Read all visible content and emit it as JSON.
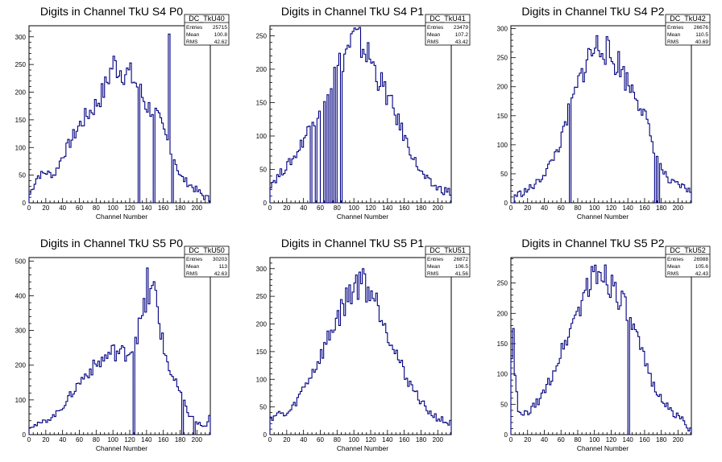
{
  "chart_data": [
    {
      "type": "histogram",
      "title": "Digits in Channel TkU S4 P0",
      "xlabel": "Channel Number",
      "xlim": [
        0,
        216
      ],
      "ylim": [
        0,
        320
      ],
      "xticks": [
        0,
        20,
        40,
        60,
        80,
        100,
        120,
        140,
        160,
        180,
        200
      ],
      "yticks": [
        0,
        50,
        100,
        150,
        200,
        250,
        300
      ],
      "stats": {
        "name": "DC_TkU40",
        "entries": "25715",
        "mean": "100.8",
        "rms": "42.62"
      },
      "series_color": "#000080",
      "x": [
        0,
        10,
        20,
        30,
        40,
        50,
        60,
        70,
        80,
        90,
        100,
        110,
        120,
        130,
        140,
        150,
        160,
        170,
        180,
        190,
        200,
        210,
        216
      ],
      "values": [
        12,
        48,
        55,
        50,
        85,
        112,
        140,
        160,
        178,
        205,
        252,
        240,
        232,
        210,
        175,
        165,
        130,
        95,
        48,
        35,
        22,
        10,
        5
      ],
      "spikes": [
        [
          130,
          0
        ],
        [
          148,
          0
        ],
        [
          166,
          305
        ],
        [
          170,
          0
        ]
      ]
    },
    {
      "type": "histogram",
      "title": "Digits in Channel TkU S4 P1",
      "xlabel": "Channel Number",
      "xlim": [
        0,
        216
      ],
      "ylim": [
        0,
        265
      ],
      "xticks": [
        0,
        20,
        40,
        60,
        80,
        100,
        120,
        140,
        160,
        180,
        200
      ],
      "yticks": [
        0,
        50,
        100,
        150,
        200,
        250
      ],
      "stats": {
        "name": "DC_TkU41",
        "entries": "23479",
        "mean": "107.2",
        "rms": "43.42"
      },
      "series_color": "#000080",
      "x": [
        0,
        10,
        20,
        30,
        40,
        50,
        60,
        70,
        80,
        90,
        100,
        110,
        120,
        130,
        140,
        150,
        160,
        170,
        180,
        190,
        200,
        210,
        216
      ],
      "values": [
        28,
        40,
        55,
        70,
        95,
        120,
        150,
        175,
        200,
        225,
        248,
        235,
        215,
        185,
        160,
        130,
        100,
        70,
        45,
        30,
        22,
        18,
        15
      ],
      "spikes": [
        [
          48,
          0
        ],
        [
          54,
          0
        ],
        [
          60,
          0
        ],
        [
          62,
          0
        ],
        [
          66,
          0
        ],
        [
          70,
          0
        ],
        [
          74,
          0
        ],
        [
          78,
          0
        ],
        [
          84,
          0
        ]
      ]
    },
    {
      "type": "histogram",
      "title": "Digits in Channel TkU S4 P2",
      "xlabel": "Channel Number",
      "xlim": [
        0,
        216
      ],
      "ylim": [
        0,
        305
      ],
      "xticks": [
        0,
        20,
        40,
        60,
        80,
        100,
        120,
        140,
        160,
        180,
        200
      ],
      "yticks": [
        0,
        50,
        100,
        150,
        200,
        250,
        300
      ],
      "stats": {
        "name": "DC_TkU42",
        "entries": "26676",
        "mean": "110.5",
        "rms": "40.69"
      },
      "series_color": "#000080",
      "x": [
        0,
        10,
        20,
        30,
        40,
        50,
        60,
        70,
        80,
        90,
        100,
        110,
        120,
        130,
        140,
        150,
        160,
        170,
        180,
        190,
        200,
        210,
        216
      ],
      "values": [
        12,
        15,
        22,
        32,
        50,
        75,
        105,
        160,
        200,
        245,
        265,
        275,
        245,
        240,
        205,
        190,
        150,
        100,
        60,
        35,
        30,
        25,
        15
      ],
      "spikes": [
        [
          0,
          0
        ],
        [
          2,
          0
        ],
        [
          70,
          0
        ],
        [
          172,
          0
        ],
        [
          176,
          0
        ]
      ]
    },
    {
      "type": "histogram",
      "title": "Digits in Channel TkU S5 P0",
      "xlabel": "Channel Number",
      "xlim": [
        0,
        216
      ],
      "ylim": [
        0,
        510
      ],
      "xticks": [
        0,
        20,
        40,
        60,
        80,
        100,
        120,
        140,
        160,
        180,
        200
      ],
      "yticks": [
        0,
        100,
        200,
        300,
        400,
        500
      ],
      "stats": {
        "name": "DC_TkU50",
        "entries": "30203",
        "mean": "113",
        "rms": "42.63"
      },
      "series_color": "#000080",
      "x": [
        0,
        10,
        20,
        30,
        40,
        50,
        60,
        70,
        80,
        90,
        100,
        110,
        120,
        130,
        140,
        150,
        160,
        170,
        180,
        190,
        200,
        210,
        216
      ],
      "values": [
        25,
        28,
        40,
        55,
        80,
        115,
        150,
        180,
        200,
        220,
        240,
        235,
        240,
        300,
        380,
        420,
        250,
        170,
        120,
        60,
        35,
        20,
        55
      ],
      "spikes": [
        [
          124,
          0
        ],
        [
          140,
          480
        ],
        [
          182,
          0
        ],
        [
          196,
          0
        ]
      ]
    },
    {
      "type": "histogram",
      "title": "Digits in Channel TkU S5 P1",
      "xlabel": "Channel Number",
      "xlim": [
        0,
        216
      ],
      "ylim": [
        0,
        320
      ],
      "xticks": [
        0,
        20,
        40,
        60,
        80,
        100,
        120,
        140,
        160,
        180,
        200
      ],
      "yticks": [
        0,
        50,
        100,
        150,
        200,
        250,
        300
      ],
      "stats": {
        "name": "DC_TkU51",
        "entries": "26872",
        "mean": "106.5",
        "rms": "41.56"
      },
      "series_color": "#000080",
      "x": [
        0,
        10,
        20,
        30,
        40,
        50,
        60,
        70,
        80,
        90,
        100,
        110,
        120,
        130,
        140,
        150,
        160,
        170,
        180,
        190,
        200,
        210,
        216
      ],
      "values": [
        30,
        38,
        35,
        55,
        85,
        110,
        140,
        175,
        210,
        240,
        270,
        275,
        260,
        230,
        190,
        150,
        110,
        85,
        60,
        40,
        30,
        22,
        20
      ],
      "spikes": [
        [
          110,
          300
        ]
      ]
    },
    {
      "type": "histogram",
      "title": "Digits in Channel TkU S5 P2",
      "xlabel": "Channel Number",
      "xlim": [
        0,
        216
      ],
      "ylim": [
        0,
        292
      ],
      "xticks": [
        0,
        20,
        40,
        60,
        80,
        100,
        120,
        140,
        160,
        180,
        200
      ],
      "yticks": [
        0,
        50,
        100,
        150,
        200,
        250
      ],
      "stats": {
        "name": "DC_TkU52",
        "entries": "26988",
        "mean": "105.6",
        "rms": "42.43"
      },
      "series_color": "#000080",
      "x": [
        0,
        10,
        20,
        30,
        40,
        50,
        60,
        70,
        80,
        90,
        100,
        110,
        120,
        130,
        140,
        150,
        160,
        170,
        180,
        190,
        200,
        210,
        216
      ],
      "values": [
        150,
        30,
        35,
        50,
        70,
        100,
        135,
        170,
        205,
        240,
        260,
        270,
        250,
        230,
        195,
        160,
        120,
        85,
        60,
        40,
        30,
        20,
        5
      ],
      "spikes": [
        [
          2,
          175
        ],
        [
          140,
          0
        ]
      ]
    }
  ]
}
